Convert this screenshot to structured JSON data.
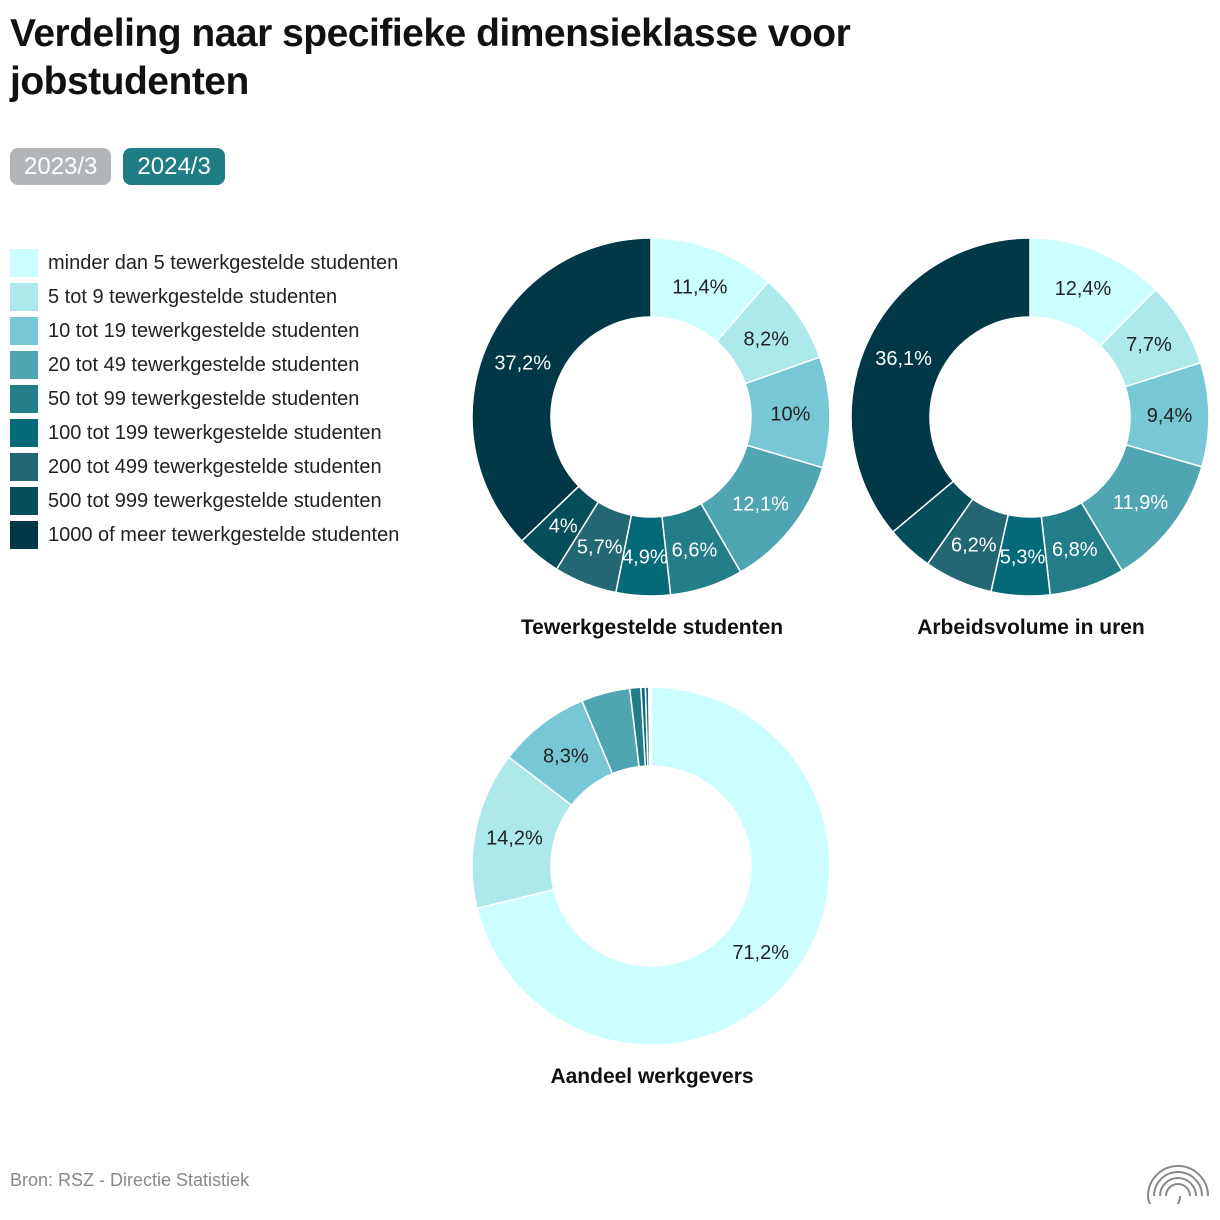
{
  "title": "Verdeling naar specifieke dimensieklasse voor jobstudenten",
  "tabs": [
    {
      "label": "2023/3",
      "active": false
    },
    {
      "label": "2024/3",
      "active": true
    }
  ],
  "legend": [
    {
      "label": "minder dan 5 tewerkgestelde studenten",
      "color": "#ccfdff"
    },
    {
      "label": "5 tot 9 tewerkgestelde studenten",
      "color": "#ade9eb"
    },
    {
      "label": "10 tot 19 tewerkgestelde studenten",
      "color": "#77c7d6"
    },
    {
      "label": "20 tot 49 tewerkgestelde studenten",
      "color": "#4fa5b2"
    },
    {
      "label": "50 tot 99 tewerkgestelde studenten",
      "color": "#247e8a"
    },
    {
      "label": "100 tot 199 tewerkgestelde studenten",
      "color": "#056977"
    },
    {
      "label": "200 tot 499 tewerkgestelde studenten",
      "color": "#236774"
    },
    {
      "label": "500 tot 999 tewerkgestelde studenten",
      "color": "#054e5b"
    },
    {
      "label": "1000 of meer tewerkgestelde studenten",
      "color": "#003847"
    }
  ],
  "chart_data": [
    {
      "type": "pie",
      "title": "Tewerkgestelde studenten",
      "categories": [
        "minder dan 5",
        "5 tot 9",
        "10 tot 19",
        "20 tot 49",
        "50 tot 99",
        "100 tot 199",
        "200 tot 499",
        "500 tot 999",
        "1000 of meer"
      ],
      "values": [
        11.4,
        8.2,
        10.0,
        12.1,
        6.6,
        4.9,
        5.7,
        4.0,
        37.2
      ],
      "labels": [
        "11,4%",
        "8,2%",
        "10%",
        "12,1%",
        "6,6%",
        "4,9%",
        "5,7%",
        "4%",
        "37,2%"
      ]
    },
    {
      "type": "pie",
      "title": "Arbeidsvolume in uren",
      "categories": [
        "minder dan 5",
        "5 tot 9",
        "10 tot 19",
        "20 tot 49",
        "50 tot 99",
        "100 tot 199",
        "200 tot 499",
        "500 tot 999",
        "1000 of meer"
      ],
      "values": [
        12.4,
        7.7,
        9.4,
        11.9,
        6.8,
        5.3,
        6.2,
        4.2,
        36.1
      ],
      "labels": [
        "12,4%",
        "7,7%",
        "9,4%",
        "11,9%",
        "6,8%",
        "5,3%",
        "6,2%",
        "",
        "36,1%"
      ]
    },
    {
      "type": "pie",
      "title": "Aandeel werkgevers",
      "categories": [
        "minder dan 5",
        "5 tot 9",
        "10 tot 19",
        "20 tot 49",
        "50 tot 99",
        "100 tot 199",
        "200 tot 499",
        "500 tot 999",
        "1000 of meer"
      ],
      "values": [
        71.2,
        14.2,
        8.3,
        4.4,
        1.0,
        0.4,
        0.3,
        0.1,
        0.1
      ],
      "labels": [
        "71,2%",
        "14,2%",
        "8,3%",
        "",
        "",
        "",
        "",
        "",
        ""
      ]
    }
  ],
  "source": "Bron: RSZ - Directie Statistiek",
  "logo_icon": "rainbow-arcs-icon"
}
